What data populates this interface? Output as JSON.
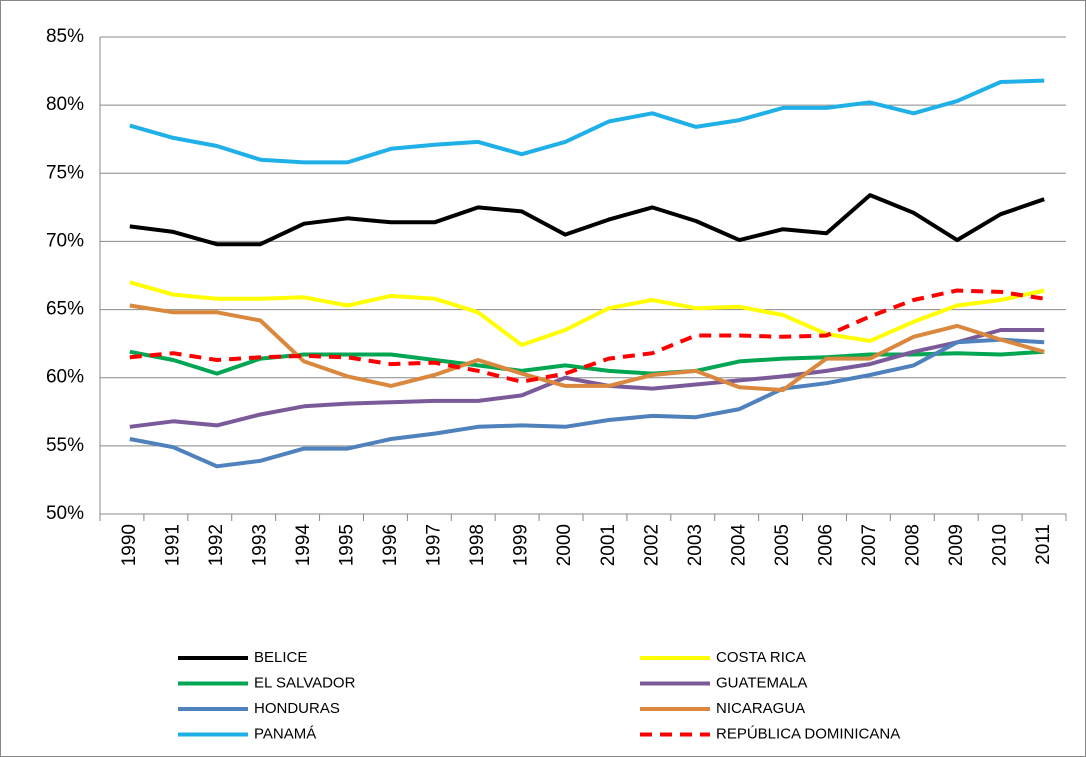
{
  "chart_data": {
    "type": "line",
    "categories": [
      "1990",
      "1991",
      "1992",
      "1993",
      "1994",
      "1995",
      "1996",
      "1997",
      "1998",
      "1999",
      "2000",
      "2001",
      "2002",
      "2003",
      "2004",
      "2005",
      "2006",
      "2007",
      "2008",
      "2009",
      "2010",
      "2011"
    ],
    "ylim": [
      50,
      85
    ],
    "yticks": [
      {
        "value": 50,
        "label": "50%"
      },
      {
        "value": 55,
        "label": "55%"
      },
      {
        "value": 60,
        "label": "60%"
      },
      {
        "value": 65,
        "label": "65%"
      },
      {
        "value": 70,
        "label": "70%"
      },
      {
        "value": 75,
        "label": "75%"
      },
      {
        "value": 80,
        "label": "80%"
      },
      {
        "value": 85,
        "label": "85%"
      }
    ],
    "grid": true,
    "legend": "bottom",
    "series": [
      {
        "name": "BELICE",
        "color": "#000000",
        "values": [
          71.1,
          70.7,
          69.8,
          69.8,
          71.3,
          71.7,
          71.4,
          71.4,
          72.5,
          72.2,
          70.5,
          71.6,
          72.5,
          71.5,
          70.1,
          70.9,
          70.6,
          73.4,
          72.1,
          70.1,
          72.0,
          73.1
        ]
      },
      {
        "name": "COSTA RICA",
        "color": "#ffff00",
        "values": [
          67.0,
          66.1,
          65.8,
          65.8,
          65.9,
          65.3,
          66.0,
          65.8,
          64.8,
          62.4,
          63.5,
          65.1,
          65.7,
          65.1,
          65.2,
          64.6,
          63.2,
          62.7,
          64.1,
          65.3,
          65.7,
          66.4
        ]
      },
      {
        "name": "EL SALVADOR",
        "color": "#00a651",
        "values": [
          61.9,
          61.3,
          60.3,
          61.4,
          61.7,
          61.7,
          61.7,
          61.3,
          60.9,
          60.5,
          60.9,
          60.5,
          60.3,
          60.5,
          61.2,
          61.4,
          61.5,
          61.7,
          61.7,
          61.8,
          61.7,
          61.9
        ]
      },
      {
        "name": "GUATEMALA",
        "color": "#7b5a9a",
        "values": [
          56.4,
          56.8,
          56.5,
          57.3,
          57.9,
          58.1,
          58.2,
          58.3,
          58.3,
          58.7,
          60.0,
          59.4,
          59.2,
          59.5,
          59.8,
          60.1,
          60.5,
          61.0,
          61.9,
          62.6,
          63.5,
          63.5
        ]
      },
      {
        "name": "HONDURAS",
        "color": "#4f81bd",
        "values": [
          55.5,
          54.9,
          53.5,
          53.9,
          54.8,
          54.8,
          55.5,
          55.9,
          56.4,
          56.5,
          56.4,
          56.9,
          57.2,
          57.1,
          57.7,
          59.2,
          59.6,
          60.2,
          60.9,
          62.6,
          62.8,
          62.6
        ]
      },
      {
        "name": "NICARAGUA",
        "color": "#d9883e",
        "values": [
          65.3,
          64.8,
          64.8,
          64.2,
          61.2,
          60.1,
          59.4,
          60.2,
          61.3,
          60.3,
          59.4,
          59.4,
          60.2,
          60.5,
          59.3,
          59.1,
          61.4,
          61.4,
          63.0,
          63.8,
          62.8,
          61.9
        ]
      },
      {
        "name": "PANAMÁ",
        "color": "#1fb0e8",
        "values": [
          78.5,
          77.6,
          77.0,
          76.0,
          75.8,
          75.8,
          76.8,
          77.1,
          77.3,
          76.4,
          77.3,
          78.8,
          79.4,
          78.4,
          78.9,
          79.8,
          79.8,
          80.2,
          79.4,
          80.3,
          81.7,
          81.8
        ]
      },
      {
        "name": "REPÚBLICA DOMINICANA",
        "color": "#ff0000",
        "dashed": true,
        "values": [
          61.5,
          61.8,
          61.3,
          61.5,
          61.6,
          61.5,
          61.0,
          61.1,
          60.5,
          59.7,
          60.3,
          61.4,
          61.8,
          63.1,
          63.1,
          63.0,
          63.1,
          64.5,
          65.7,
          66.4,
          66.3,
          65.8
        ]
      }
    ]
  }
}
